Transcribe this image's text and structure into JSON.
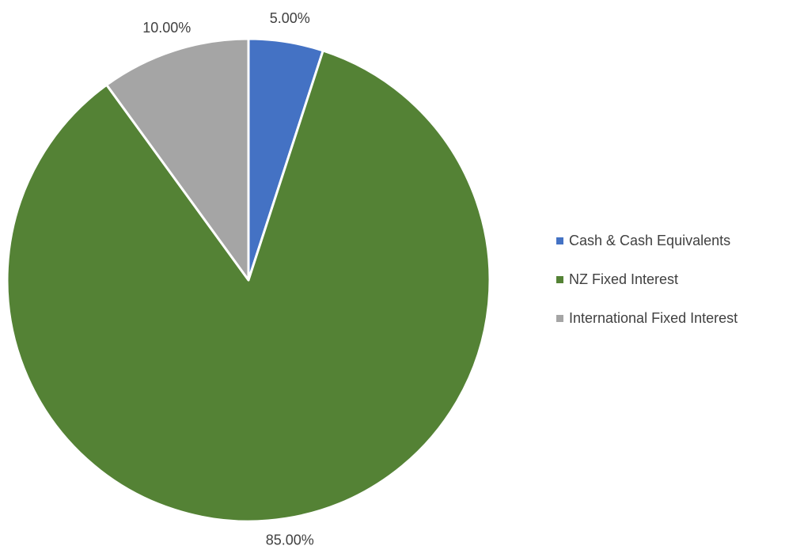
{
  "chart_data": {
    "type": "pie",
    "categories": [
      "Cash & Cash Equivalents",
      "NZ Fixed Interest",
      "International Fixed Interest"
    ],
    "values": [
      5.0,
      85.0,
      10.0
    ],
    "labels": [
      "5.00%",
      "85.00%",
      "10.00%"
    ],
    "colors": [
      "#4472C4",
      "#548235",
      "#A5A5A5"
    ],
    "start_angle": "12 o'clock",
    "direction": "clockwise",
    "legend_position": "right"
  }
}
